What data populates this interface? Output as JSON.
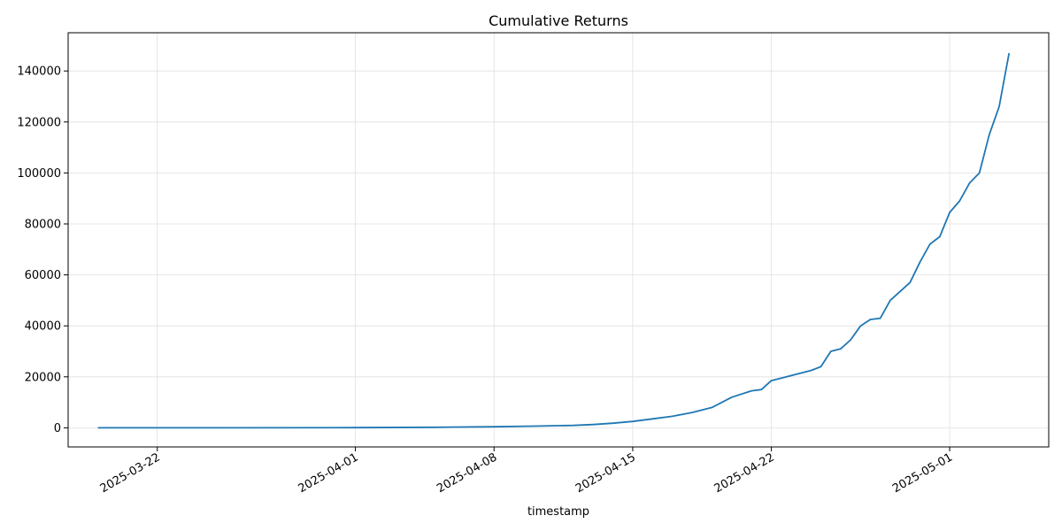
{
  "chart_data": {
    "type": "line",
    "title": "Cumulative Returns",
    "xlabel": "timestamp",
    "ylabel": "",
    "x_type": "date",
    "xlim": [
      "2025-03-17T12:00",
      "2025-05-06T00:00"
    ],
    "ylim": [
      -7500,
      155000
    ],
    "grid": true,
    "legend": "none",
    "x_ticks": [
      "2025-03-22",
      "2025-04-01",
      "2025-04-08",
      "2025-04-15",
      "2025-04-22",
      "2025-05-01"
    ],
    "y_ticks": [
      0,
      20000,
      40000,
      60000,
      80000,
      100000,
      120000,
      140000
    ],
    "colors": {
      "line": "#1f77b4",
      "grid": "#e0e0e0",
      "axis": "#000000",
      "background": "#ffffff"
    },
    "series": [
      {
        "x": [
          "2025-03-19",
          "2025-03-25",
          "2025-04-01",
          "2025-04-05",
          "2025-04-08",
          "2025-04-10",
          "2025-04-12",
          "2025-04-13",
          "2025-04-14",
          "2025-04-15",
          "2025-04-16",
          "2025-04-17",
          "2025-04-18",
          "2025-04-19",
          "2025-04-20",
          "2025-04-21",
          "2025-04-21T12:00",
          "2025-04-22",
          "2025-04-23",
          "2025-04-24",
          "2025-04-24T12:00",
          "2025-04-25",
          "2025-04-25T12:00",
          "2025-04-26",
          "2025-04-26T12:00",
          "2025-04-27",
          "2025-04-27T12:00",
          "2025-04-28",
          "2025-04-28T12:00",
          "2025-04-29",
          "2025-04-29T12:00",
          "2025-04-30",
          "2025-04-30T12:00",
          "2025-05-01",
          "2025-05-01T12:00",
          "2025-05-02",
          "2025-05-02T12:00",
          "2025-05-03",
          "2025-05-03T12:00",
          "2025-05-04"
        ],
        "values": [
          0,
          10,
          60,
          200,
          400,
          650,
          950,
          1300,
          1800,
          2500,
          3500,
          4500,
          6000,
          8000,
          12000,
          14500,
          15000,
          18500,
          20500,
          22500,
          24000,
          30000,
          31000,
          34500,
          40000,
          42500,
          43000,
          50000,
          53500,
          57000,
          65000,
          72000,
          75000,
          84500,
          89000,
          96000,
          100000,
          115000,
          126000,
          147000
        ]
      }
    ]
  }
}
